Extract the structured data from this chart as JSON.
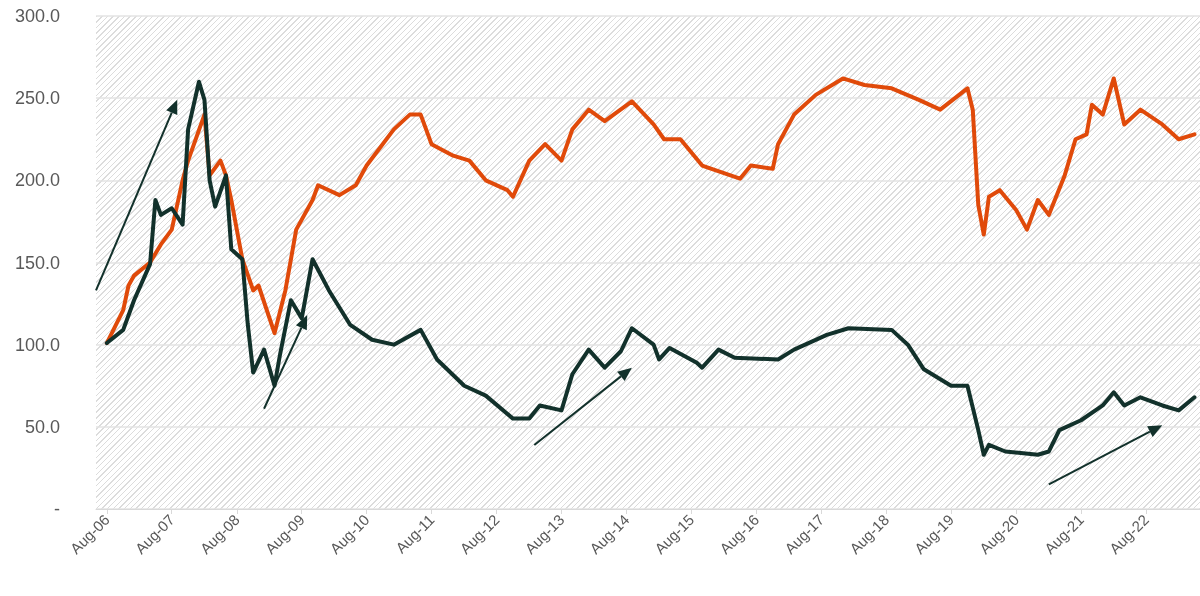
{
  "chart_data": {
    "type": "line",
    "xlim": [
      "2006-06",
      "2023-06"
    ],
    "xticks": [
      {
        "value": "2006-08",
        "label": "Aug-06"
      },
      {
        "value": "2007-08",
        "label": "Aug-07"
      },
      {
        "value": "2008-08",
        "label": "Aug-08"
      },
      {
        "value": "2009-08",
        "label": "Aug-09"
      },
      {
        "value": "2010-08",
        "label": "Aug-10"
      },
      {
        "value": "2011-08",
        "label": "Aug-11"
      },
      {
        "value": "2012-08",
        "label": "Aug-12"
      },
      {
        "value": "2013-08",
        "label": "Aug-13"
      },
      {
        "value": "2014-08",
        "label": "Aug-14"
      },
      {
        "value": "2015-08",
        "label": "Aug-15"
      },
      {
        "value": "2016-08",
        "label": "Aug-16"
      },
      {
        "value": "2017-08",
        "label": "Aug-17"
      },
      {
        "value": "2018-08",
        "label": "Aug-18"
      },
      {
        "value": "2019-08",
        "label": "Aug-19"
      },
      {
        "value": "2020-08",
        "label": "Aug-20"
      },
      {
        "value": "2021-08",
        "label": "Aug-21"
      },
      {
        "value": "2022-08",
        "label": "Aug-22"
      }
    ],
    "ylim": [
      0,
      300
    ],
    "yticks": [
      {
        "value": 0,
        "label": "-"
      },
      {
        "value": 50,
        "label": "50.0"
      },
      {
        "value": 100,
        "label": "100.0"
      },
      {
        "value": 150,
        "label": "150.0"
      },
      {
        "value": 200,
        "label": "200.0"
      },
      {
        "value": 250,
        "label": "250.0"
      },
      {
        "value": 300,
        "label": "300.0"
      }
    ],
    "grid": "y",
    "marker": "none",
    "line_style": "solid",
    "series": [
      {
        "color": "#e04a0a",
        "x": [
          "2006-08",
          "2006-11",
          "2006-12",
          "2007-01",
          "2007-04",
          "2007-06",
          "2007-08",
          "2007-10",
          "2007-11",
          "2008-02",
          "2008-03",
          "2008-05",
          "2008-06",
          "2008-07",
          "2008-09",
          "2008-11",
          "2008-12",
          "2009-03",
          "2009-05",
          "2009-07",
          "2009-10",
          "2009-11",
          "2010-03",
          "2010-06",
          "2010-08",
          "2011-01",
          "2011-04",
          "2011-06",
          "2011-08",
          "2011-12",
          "2012-03",
          "2012-06",
          "2012-10",
          "2012-11",
          "2013-02",
          "2013-05",
          "2013-08",
          "2013-10",
          "2014-01",
          "2014-04",
          "2014-09",
          "2015-01",
          "2015-03",
          "2015-06",
          "2015-10",
          "2016-05",
          "2016-07",
          "2016-11",
          "2016-12",
          "2017-03",
          "2017-07",
          "2017-12",
          "2018-04",
          "2018-09",
          "2019-02",
          "2019-06",
          "2019-11",
          "2019-12",
          "2020-01",
          "2020-02",
          "2020-03",
          "2020-05",
          "2020-08",
          "2020-10",
          "2020-12",
          "2021-02",
          "2021-05",
          "2021-07",
          "2021-09",
          "2021-10",
          "2021-12",
          "2022-02",
          "2022-04",
          "2022-07",
          "2022-11",
          "2023-02",
          "2023-05"
        ],
        "values": [
          101,
          121,
          136,
          142,
          150,
          161,
          170,
          200,
          212,
          240,
          203,
          212,
          203,
          188,
          152,
          133,
          136,
          107,
          133,
          170,
          188,
          197,
          191,
          197,
          209,
          231,
          240,
          240,
          222,
          215,
          212,
          200,
          194,
          190,
          212,
          222,
          212,
          231,
          243,
          236,
          248,
          234,
          225,
          225,
          209,
          201,
          209,
          207,
          222,
          240,
          252,
          262,
          258,
          256,
          249,
          243,
          256,
          243,
          185,
          167,
          190,
          194,
          182,
          170,
          188,
          179,
          203,
          225,
          228,
          246,
          240,
          262,
          234,
          243,
          234,
          225,
          228
        ]
      },
      {
        "color": "#12312b",
        "x": [
          "2006-08",
          "2006-11",
          "2007-01",
          "2007-04",
          "2007-05",
          "2007-06",
          "2007-08",
          "2007-10",
          "2007-11",
          "2008-01",
          "2008-02",
          "2008-03",
          "2008-04",
          "2008-06",
          "2008-07",
          "2008-09",
          "2008-10",
          "2008-11",
          "2009-01",
          "2009-03",
          "2009-04",
          "2009-06",
          "2009-08",
          "2009-10",
          "2010-01",
          "2010-05",
          "2010-09",
          "2011-01",
          "2011-06",
          "2011-09",
          "2012-02",
          "2012-06",
          "2012-11",
          "2013-02",
          "2013-04",
          "2013-08",
          "2013-10",
          "2014-01",
          "2014-04",
          "2014-07",
          "2014-09",
          "2015-01",
          "2015-02",
          "2015-04",
          "2015-09",
          "2015-10",
          "2016-01",
          "2016-04",
          "2016-12",
          "2017-03",
          "2017-09",
          "2018-01",
          "2018-09",
          "2018-12",
          "2019-03",
          "2019-08",
          "2019-11",
          "2020-01",
          "2020-02",
          "2020-03",
          "2020-06",
          "2020-12",
          "2021-02",
          "2021-04",
          "2021-08",
          "2021-12",
          "2022-02",
          "2022-04",
          "2022-07",
          "2022-11",
          "2023-02",
          "2023-05"
        ],
        "values": [
          101,
          109,
          127,
          149,
          188,
          179,
          183,
          173,
          231,
          260,
          249,
          200,
          184,
          203,
          158,
          152,
          113,
          83,
          97,
          75,
          94,
          127,
          116,
          152,
          133,
          112,
          103,
          100,
          109,
          91,
          75,
          69,
          55,
          55,
          63,
          60,
          82,
          97,
          86,
          96,
          110,
          100,
          91,
          98,
          89,
          86,
          97,
          92,
          91,
          97,
          106,
          110,
          109,
          100,
          85,
          75,
          75,
          48,
          33,
          39,
          35,
          33,
          35,
          48,
          54,
          63,
          71,
          63,
          68,
          63,
          60,
          68
        ]
      }
    ]
  }
}
